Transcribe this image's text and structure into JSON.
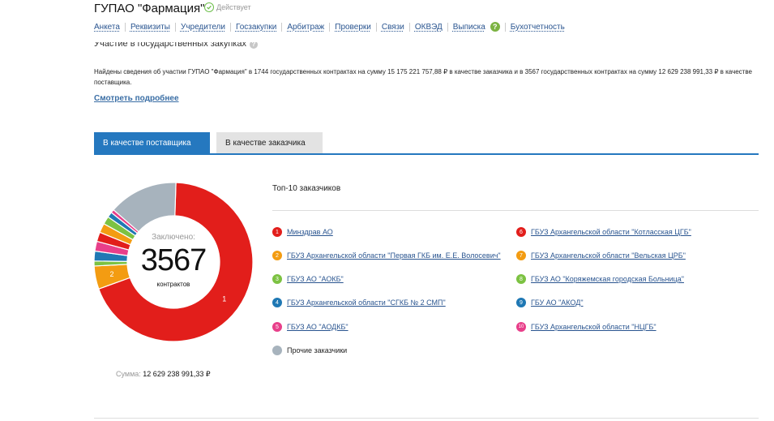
{
  "header": {
    "company_name": "ГУПАО \"Фармация\"",
    "status_text": "Действует",
    "status_icon": "check-circle-icon"
  },
  "nav": {
    "items": [
      {
        "label": "Анкета"
      },
      {
        "label": "Реквизиты"
      },
      {
        "label": "Учредители"
      },
      {
        "label": "Госзакупки"
      },
      {
        "label": "Арбитраж"
      },
      {
        "label": "Проверки"
      },
      {
        "label": "Связи"
      },
      {
        "label": "ОКВЭД"
      },
      {
        "label": "Выписка"
      },
      {
        "label": "Бухотчетность"
      }
    ],
    "help_badge": "?"
  },
  "section": {
    "title": "Участие в государственных закупках",
    "info_icon": "?",
    "summary": "Найдены сведения об участии ГУПАО \"Фармация\" в 1744 государственных контрактах на сумму 15 175 221 757,88 ₽ в качестве заказчика и в 3567 государственных контрактах на сумму 12 629 238 991,33 ₽ в качестве поставщика.",
    "more_link": "Смотреть подробнее"
  },
  "tabs": [
    {
      "label": "В качестве поставщика",
      "active": true
    },
    {
      "label": "В качестве заказчика",
      "active": false
    }
  ],
  "donut": {
    "concluded_label": "Заключено:",
    "count": "3567",
    "count_unit": "контрактов"
  },
  "sum": {
    "label": "Сумма:",
    "value": "12 629 238 991,33 ₽"
  },
  "legend": {
    "title": "Топ-10 заказчиков",
    "other_label": "Прочие заказчики"
  },
  "chart_data": {
    "type": "pie",
    "title": "",
    "slices": [
      {
        "num": "1",
        "label": "Минздрав АО",
        "share": 0.69,
        "color": "#e21e1b",
        "show_num": true
      },
      {
        "num": "2",
        "label": "ГБУЗ Архангельской области \"Первая ГКБ им. Е.Е. Волосевич\"",
        "share": 0.047,
        "color": "#f39c12",
        "show_num": true
      },
      {
        "num": "3",
        "label": "ГБУЗ АО \"АОКБ\"",
        "share": 0.01,
        "color": "#7cc242",
        "show_num": false
      },
      {
        "num": "4",
        "label": "ГБУЗ Архангельской области \"СГКБ № 2 СМП\"",
        "share": 0.02,
        "color": "#1f78b4",
        "show_num": false
      },
      {
        "num": "5",
        "label": "ГБУЗ АО \"АОДКБ\"",
        "share": 0.02,
        "color": "#e83f8a",
        "show_num": false
      },
      {
        "num": "6",
        "label": "ГБУЗ Архангельской области \"Котласская ЦГБ\"",
        "share": 0.019,
        "color": "#e21e1b",
        "show_num": false
      },
      {
        "num": "7",
        "label": "ГБУЗ Архангельской области \"Вельская ЦРБ\"",
        "share": 0.019,
        "color": "#f39c12",
        "show_num": false
      },
      {
        "num": "8",
        "label": "ГБУЗ АО \"Коряжемская городская Больница\"",
        "share": 0.016,
        "color": "#7cc242",
        "show_num": false
      },
      {
        "num": "9",
        "label": "ГБУ АО \"АКОД\"",
        "share": 0.011,
        "color": "#1f78b4",
        "show_num": false
      },
      {
        "num": "10",
        "label": "ГБУЗ Архангельской области \"НЦГБ\"",
        "share": 0.007,
        "color": "#e83f8a",
        "show_num": false
      },
      {
        "num": "",
        "label": "Прочие заказчики",
        "share": 0.141,
        "color": "#a7b3bd",
        "show_num": false
      }
    ]
  }
}
